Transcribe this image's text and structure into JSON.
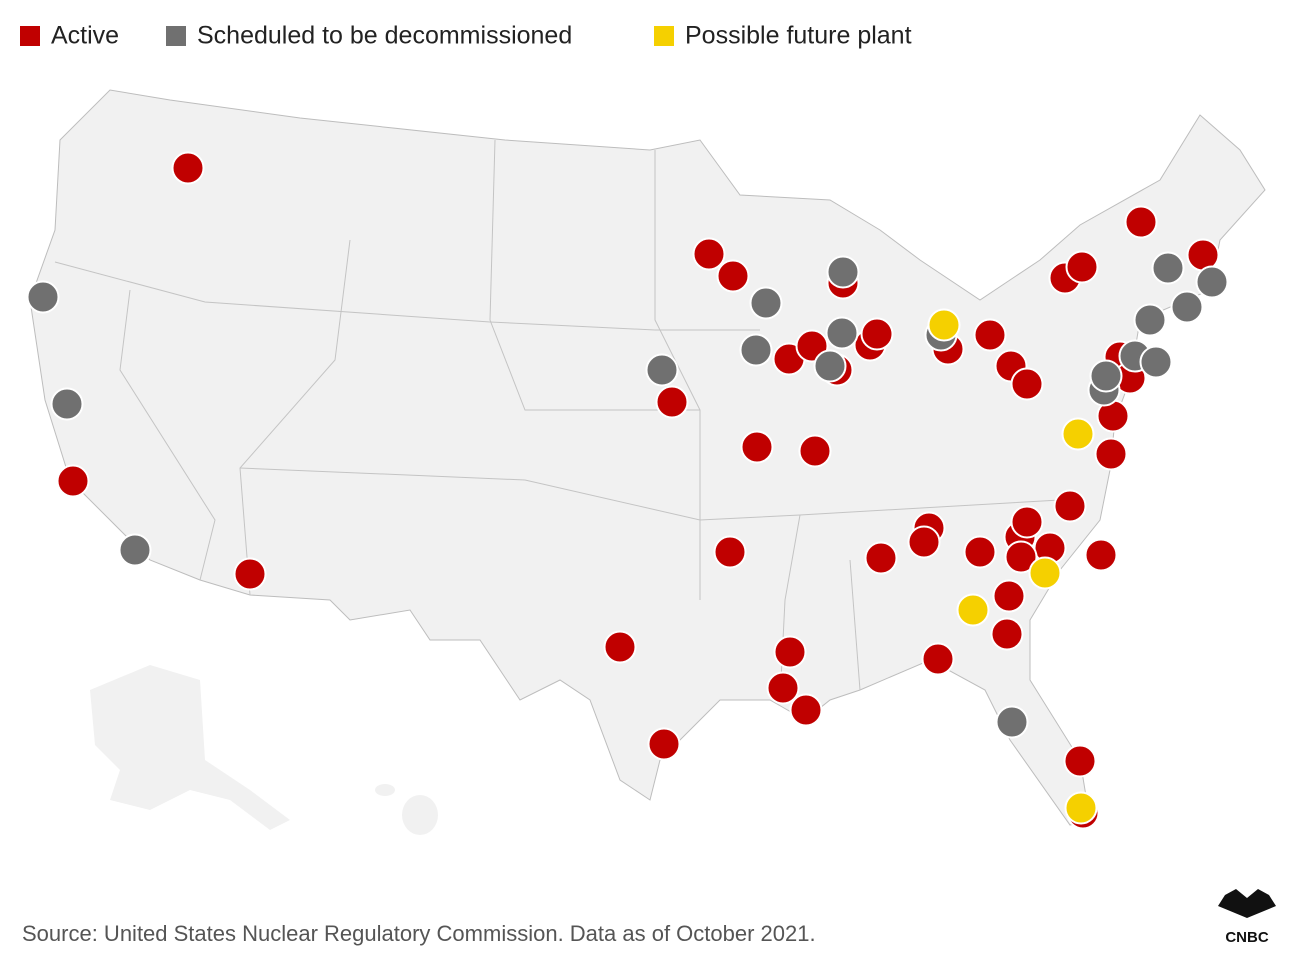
{
  "legend": {
    "items": [
      {
        "label": "Active",
        "color": "#c00000"
      },
      {
        "label": "Scheduled to be decommissioned",
        "color": "#707070"
      },
      {
        "label": "Possible future plant",
        "color": "#f5d000"
      }
    ]
  },
  "source": "Source: United States Nuclear Regulatory Commission. Data as of October 2021.",
  "logo": "CNBC"
}
